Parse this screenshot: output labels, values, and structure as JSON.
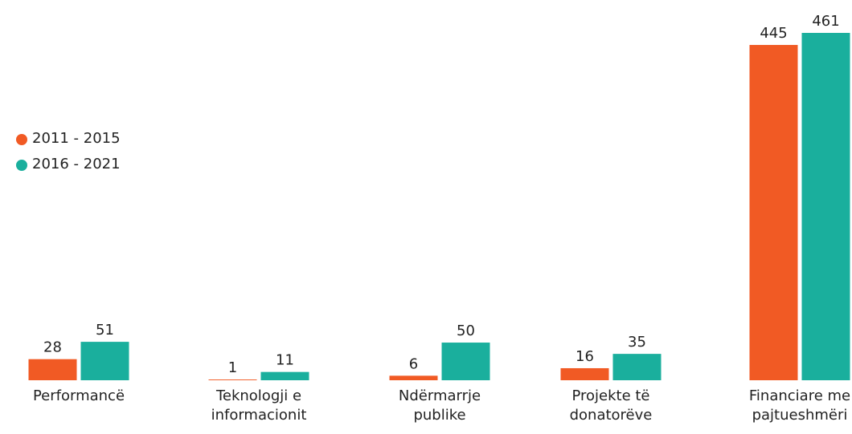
{
  "chart_data": {
    "type": "bar",
    "categories": [
      "Performancë",
      "Teknologji e\ninformacionit",
      "Ndërmarrje\npublike",
      "Projekte të\ndonatorëve",
      "Financiare me\npajtueshmëri"
    ],
    "series": [
      {
        "name": "2011 - 2015",
        "color": "#f15a24",
        "values": [
          28,
          1,
          6,
          16,
          445
        ]
      },
      {
        "name": "2016 - 2021",
        "color": "#1aaf9d",
        "values": [
          51,
          11,
          50,
          35,
          461
        ]
      }
    ],
    "legend": "left"
  }
}
